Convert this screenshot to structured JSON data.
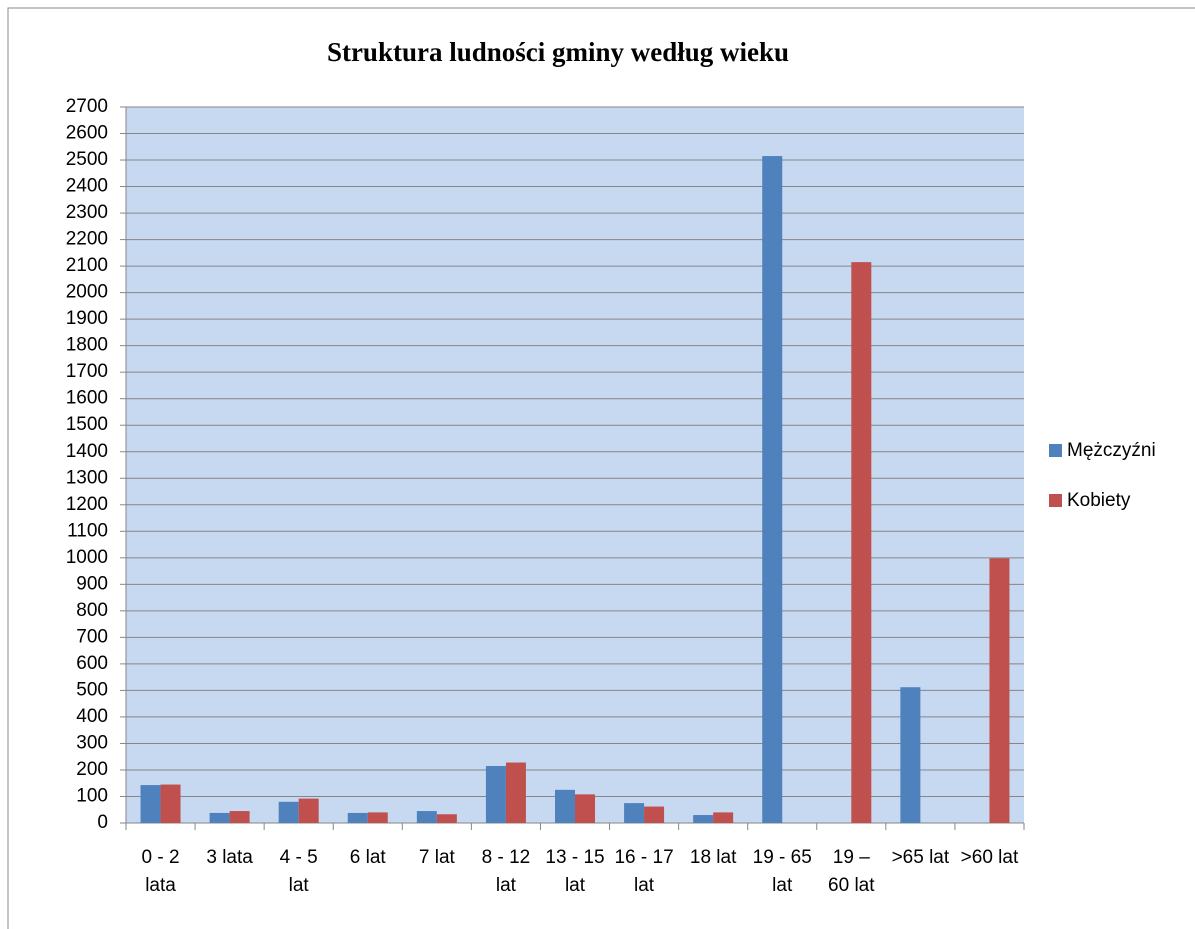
{
  "chart_data": {
    "type": "bar",
    "title": "Struktura ludności gminy według wieku",
    "categories": [
      "0 - 2 lata",
      "3 lata",
      "4 - 5 lat",
      "6 lat",
      "7 lat",
      "8 - 12 lat",
      "13 - 15 lat",
      "16 - 17 lat",
      "18 lat",
      "19 - 65 lat",
      "19 – 60 lat",
      ">65 lat",
      ">60 lat"
    ],
    "series": [
      {
        "name": "Mężczyźni",
        "color": "#4f81bd",
        "values": [
          143,
          38,
          80,
          38,
          45,
          215,
          125,
          75,
          30,
          2515,
          null,
          512,
          null
        ]
      },
      {
        "name": "Kobiety",
        "color": "#c0504d",
        "values": [
          145,
          45,
          92,
          40,
          33,
          228,
          108,
          62,
          40,
          null,
          2115,
          null,
          998
        ]
      }
    ],
    "ylim": [
      0,
      2700
    ],
    "yticks": [
      0,
      100,
      200,
      300,
      400,
      500,
      600,
      700,
      800,
      900,
      1000,
      1100,
      1200,
      1300,
      1400,
      1500,
      1600,
      1700,
      1800,
      1900,
      2000,
      2100,
      2200,
      2300,
      2400,
      2500,
      2600,
      2700
    ],
    "grid": true,
    "legend": "right"
  }
}
